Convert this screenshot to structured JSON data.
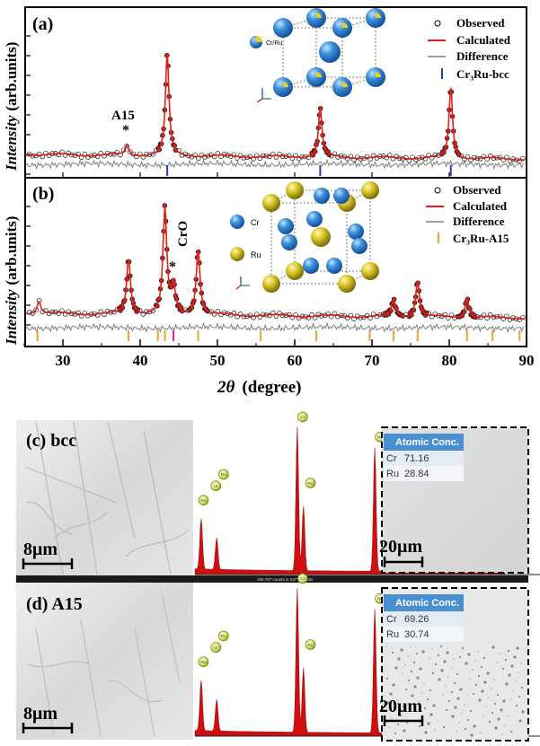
{
  "figure": {
    "panel_a": {
      "label": "(a)",
      "peak_annotation": "A15",
      "peak_marker": "*",
      "atom_legend": "Cr/Ru",
      "legend": {
        "observed": "Observed",
        "calculated": "Calculated",
        "difference": "Difference",
        "phase": "Cr₃Ru-bcc"
      }
    },
    "panel_b": {
      "label": "(b)",
      "peak_annotation": "CrO",
      "peak_marker": "*",
      "atom_legend_cr": "Cr",
      "atom_legend_ru": "Ru",
      "legend": {
        "observed": "Observed",
        "calculated": "Calculated",
        "difference": "Difference",
        "phase": "Cr₃Ru-A15"
      }
    },
    "y_axis_label_italic": "Intensity",
    "y_axis_label_units": "(arb.units)",
    "x_axis_label_symbol": "2θ",
    "x_axis_label_units": "(degree)",
    "x_tick_labels": [
      "30",
      "40",
      "50",
      "60",
      "70",
      "80",
      "90"
    ],
    "panel_c": {
      "label": "(c) bcc",
      "scale_left": "8μm",
      "scale_right": "20μm",
      "table_header": "Atomic Conc.",
      "rows": [
        {
          "element": "Cr",
          "value": "71.16"
        },
        {
          "element": "Ru",
          "value": "28.84"
        }
      ],
      "spectrum_status": "190.757 counts in 247 seconds"
    },
    "panel_d": {
      "label": "(d) A15",
      "scale_left": "8μm",
      "scale_right": "20μm",
      "table_header": "Atomic Conc.",
      "rows": [
        {
          "element": "Cr",
          "value": "69.26"
        },
        {
          "element": "Ru",
          "value": "30.74"
        }
      ]
    },
    "edx_peak_labels": [
      "Ru",
      "Cr",
      "Ru",
      "Cr",
      "Ru",
      "Ru",
      "Cr"
    ]
  },
  "chart_data": [
    {
      "type": "line",
      "panel": "(a)",
      "xlabel": "2θ (degree)",
      "ylabel": "Intensity (arb.units)",
      "xlim": [
        25,
        90
      ],
      "series": [
        {
          "name": "Observed",
          "style": "open circles"
        },
        {
          "name": "Calculated",
          "color": "#e0201b"
        },
        {
          "name": "Difference",
          "color": "#7a7a7a"
        }
      ],
      "peaks": [
        {
          "x": 38.3,
          "rel": 0.1,
          "label": "A15"
        },
        {
          "x": 43.5,
          "rel": 1.0
        },
        {
          "x": 63.3,
          "rel": 0.48
        },
        {
          "x": 80.2,
          "rel": 0.7
        }
      ],
      "bragg_ticks": {
        "name": "Cr₃Ru-bcc",
        "color": "#1a3fbf",
        "x": [
          43.5,
          63.3,
          80.2
        ]
      }
    },
    {
      "type": "line",
      "panel": "(b)",
      "xlabel": "2θ (degree)",
      "ylabel": "Intensity (arb.units)",
      "xlim": [
        25,
        90
      ],
      "series": [
        {
          "name": "Observed",
          "style": "open circles"
        },
        {
          "name": "Calculated",
          "color": "#e0201b"
        },
        {
          "name": "Difference",
          "color": "#7a7a7a"
        }
      ],
      "peaks": [
        {
          "x": 26.9,
          "rel": 0.12
        },
        {
          "x": 38.5,
          "rel": 0.52
        },
        {
          "x": 43.2,
          "rel": 1.0
        },
        {
          "x": 44.3,
          "rel": 0.25,
          "label": "CrO"
        },
        {
          "x": 47.5,
          "rel": 0.62
        },
        {
          "x": 72.8,
          "rel": 0.15
        },
        {
          "x": 75.9,
          "rel": 0.34
        },
        {
          "x": 82.3,
          "rel": 0.18
        }
      ],
      "bragg_ticks": {
        "name": "Cr₃Ru-A15",
        "color": "#f0a030",
        "x": [
          26.7,
          38.5,
          42.3,
          43.2,
          47.5,
          55.6,
          62.8,
          69.7,
          72.8,
          75.9,
          82.3,
          85.6,
          89.1
        ]
      },
      "extra_tick": {
        "x": 44.3,
        "color": "#e0209b"
      }
    }
  ],
  "colors": {
    "calc": "#e0201b",
    "obs_fill": "#c8241c",
    "diff": "#7f7f7f",
    "bcc_tick": "#1a3fbf",
    "a15_tick": "#f0a030",
    "cro_tick": "#e0209b",
    "atom_blue": "#2e7fd0",
    "atom_gold": "#c9b21a",
    "edx_red": "#d01010"
  },
  "icons": [
    "axis-triad-icon"
  ]
}
